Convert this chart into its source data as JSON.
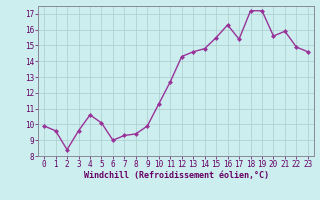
{
  "x": [
    0,
    1,
    2,
    3,
    4,
    5,
    6,
    7,
    8,
    9,
    10,
    11,
    12,
    13,
    14,
    15,
    16,
    17,
    18,
    19,
    20,
    21,
    22,
    23
  ],
  "y": [
    9.9,
    9.6,
    8.4,
    9.6,
    10.6,
    10.1,
    9.0,
    9.3,
    9.4,
    9.9,
    11.3,
    12.7,
    14.3,
    14.6,
    14.8,
    15.5,
    16.3,
    15.4,
    17.2,
    17.2,
    15.6,
    15.9,
    14.9,
    14.6
  ],
  "line_color": "#993399",
  "marker": "D",
  "marker_size": 2.0,
  "line_width": 1.0,
  "bg_color": "#cceeee",
  "grid_color": "#aacccc",
  "xlabel": "Windchill (Refroidissement éolien,°C)",
  "xlabel_color": "#660066",
  "xlabel_fontsize": 6.0,
  "tick_color": "#660066",
  "tick_fontsize": 5.5,
  "ytick_fontsize": 5.5,
  "ylim": [
    8,
    17.5
  ],
  "xlim": [
    -0.5,
    23.5
  ],
  "yticks": [
    8,
    9,
    10,
    11,
    12,
    13,
    14,
    15,
    16,
    17
  ],
  "xticks": [
    0,
    1,
    2,
    3,
    4,
    5,
    6,
    7,
    8,
    9,
    10,
    11,
    12,
    13,
    14,
    15,
    16,
    17,
    18,
    19,
    20,
    21,
    22,
    23
  ],
  "spine_color": "#888899"
}
